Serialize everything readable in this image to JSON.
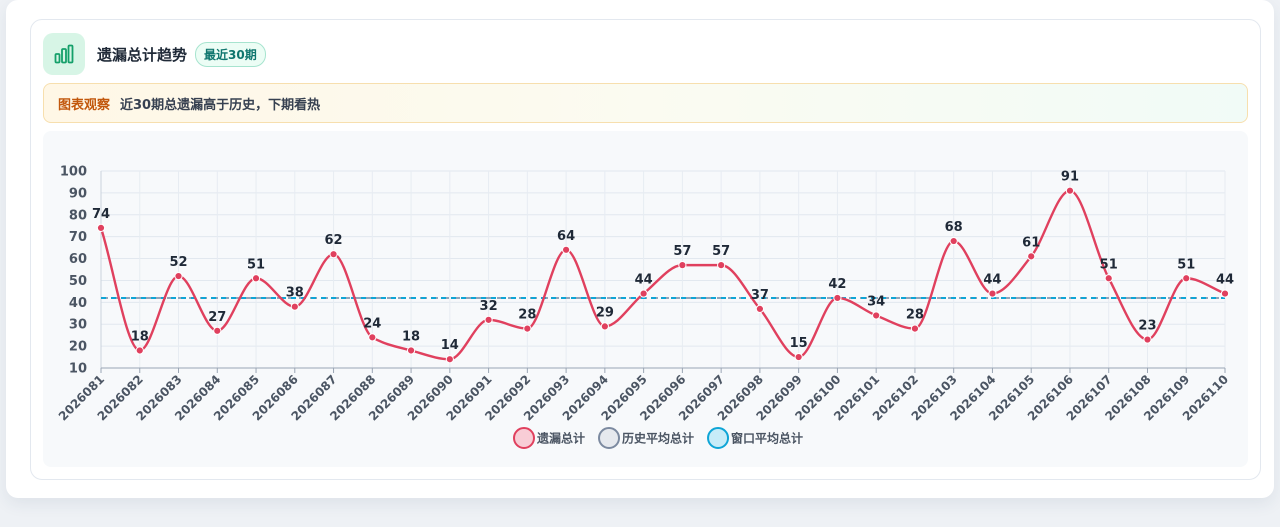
{
  "header": {
    "title": "遗漏总计趋势",
    "badge": "最近30期",
    "icon": "bar-chart-icon"
  },
  "insight": {
    "label": "图表观察",
    "text": "近30期总遗漏高于历史，下期看热"
  },
  "chart_data": {
    "type": "line",
    "categories": [
      "2026081",
      "2026082",
      "2026083",
      "2026084",
      "2026085",
      "2026086",
      "2026087",
      "2026088",
      "2026089",
      "2026090",
      "2026091",
      "2026092",
      "2026093",
      "2026094",
      "2026095",
      "2026096",
      "2026097",
      "2026098",
      "2026099",
      "2026100",
      "2026101",
      "2026102",
      "2026103",
      "2026104",
      "2026105",
      "2026106",
      "2026107",
      "2026108",
      "2026109",
      "2026110"
    ],
    "series": [
      {
        "name": "遗漏总计",
        "color": "#e0405e",
        "values": [
          74,
          18,
          52,
          27,
          51,
          38,
          62,
          24,
          18,
          14,
          32,
          28,
          64,
          29,
          44,
          57,
          57,
          37,
          15,
          42,
          34,
          28,
          68,
          44,
          61,
          91,
          51,
          23,
          51,
          44
        ]
      },
      {
        "name": "历史平均总计",
        "color": "#94a3b8",
        "values": [
          42,
          42,
          42,
          42,
          42,
          42,
          42,
          42,
          42,
          42,
          42,
          42,
          42,
          42,
          42,
          42,
          42,
          42,
          42,
          42,
          42,
          42,
          42,
          42,
          42,
          42,
          42,
          42,
          42,
          42
        ]
      },
      {
        "name": "窗口平均总计",
        "color": "#0ea5d6",
        "values": [
          42,
          42,
          42,
          42,
          42,
          42,
          42,
          42,
          42,
          42,
          42,
          42,
          42,
          42,
          42,
          42,
          42,
          42,
          42,
          42,
          42,
          42,
          42,
          42,
          42,
          42,
          42,
          42,
          42,
          42
        ]
      }
    ],
    "yticks": [
      10,
      20,
      30,
      40,
      50,
      60,
      70,
      80,
      90,
      100
    ],
    "ylim": [
      10,
      100
    ],
    "grid": true,
    "legend_position": "bottom-center"
  }
}
